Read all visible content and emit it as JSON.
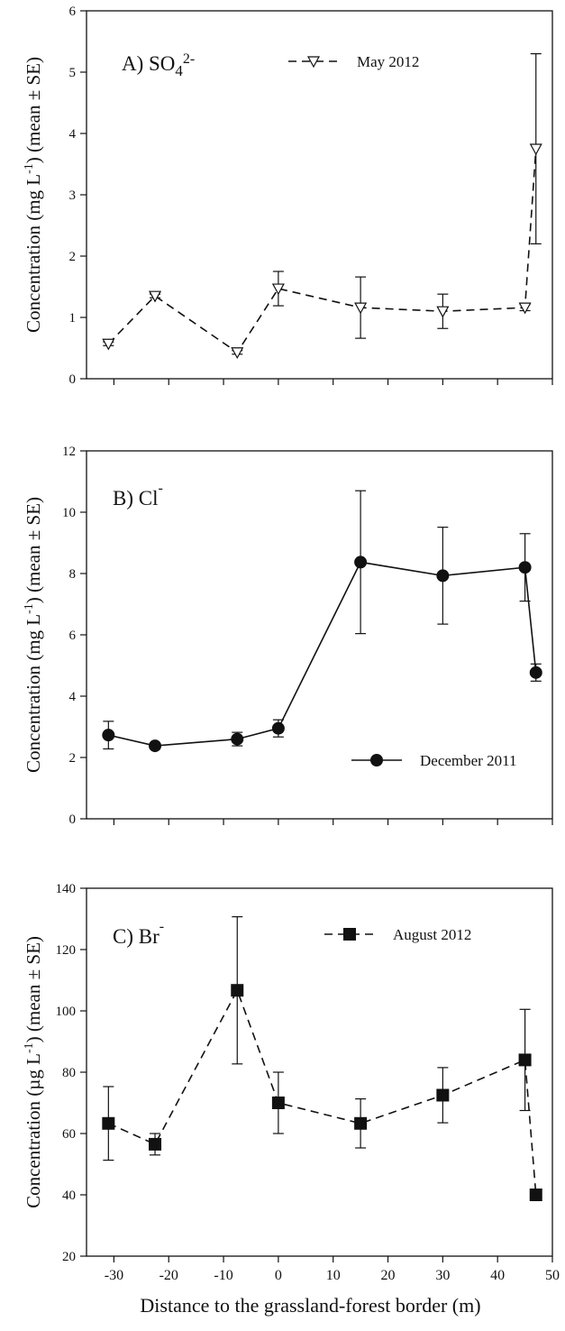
{
  "chart_data": [
    {
      "type": "line",
      "panel_label": "A) SO",
      "panel_sub": "4",
      "panel_sup": "2-",
      "ylabel": "Concentration (mg L",
      "ylabel_sup": "-1",
      "ylabel_tail": ") (mean ± SE)",
      "xlim": [
        -35,
        50
      ],
      "ylim": [
        0,
        6
      ],
      "yticks": [
        0,
        1,
        2,
        3,
        4,
        5,
        6
      ],
      "xticks": [
        -30,
        -20,
        -10,
        0,
        10,
        20,
        30,
        40,
        50
      ],
      "series": [
        {
          "name": "May 2012",
          "marker": "triangle-down-open",
          "line": "dashed",
          "x": [
            -31,
            -22.5,
            -7.5,
            0,
            15,
            30,
            45,
            47
          ],
          "y": [
            0.57,
            1.35,
            0.43,
            1.47,
            1.16,
            1.1,
            1.16,
            3.75
          ],
          "err": [
            0.03,
            0.03,
            0.03,
            0.28,
            0.5,
            0.28,
            0.05,
            1.55
          ]
        }
      ]
    },
    {
      "type": "line",
      "panel_label": "B) Cl",
      "panel_sup": "-",
      "ylabel": "Concentration (mg L",
      "ylabel_sup": "-1",
      "ylabel_tail": ") (mean ± SE)",
      "xlim": [
        -35,
        50
      ],
      "ylim": [
        0,
        12
      ],
      "yticks": [
        0,
        2,
        4,
        6,
        8,
        10,
        12
      ],
      "xticks": [
        -30,
        -20,
        -10,
        0,
        10,
        20,
        30,
        40,
        50
      ],
      "series": [
        {
          "name": "December 2011",
          "marker": "circle-filled",
          "line": "solid",
          "x": [
            -31,
            -22.5,
            -7.5,
            0,
            15,
            30,
            45,
            47
          ],
          "y": [
            2.73,
            2.38,
            2.6,
            2.95,
            8.37,
            7.93,
            8.2,
            4.77
          ],
          "err": [
            0.45,
            0.08,
            0.22,
            0.28,
            2.33,
            1.58,
            1.1,
            0.28
          ]
        }
      ]
    },
    {
      "type": "line",
      "panel_label": "C) Br",
      "panel_sup": "-",
      "ylabel": "Concentration (µg L",
      "ylabel_sup": "-1",
      "ylabel_tail": ") (mean ± SE)",
      "xlabel": "Distance to the grassland-forest border (m)",
      "xlim": [
        -35,
        50
      ],
      "ylim": [
        20,
        140
      ],
      "yticks": [
        20,
        40,
        60,
        80,
        100,
        120,
        140
      ],
      "xticks": [
        -30,
        -20,
        -10,
        0,
        10,
        20,
        30,
        40,
        50
      ],
      "series": [
        {
          "name": "August 2012",
          "marker": "square-filled",
          "line": "dashed",
          "x": [
            -31,
            -22.5,
            -7.5,
            0,
            15,
            30,
            45,
            47
          ],
          "y": [
            63.3,
            56.5,
            106.7,
            70.0,
            63.3,
            72.5,
            84.0,
            40.0
          ],
          "err": [
            12.0,
            3.5,
            24.0,
            10.0,
            8.0,
            9.0,
            16.5,
            0.5
          ]
        }
      ]
    }
  ]
}
